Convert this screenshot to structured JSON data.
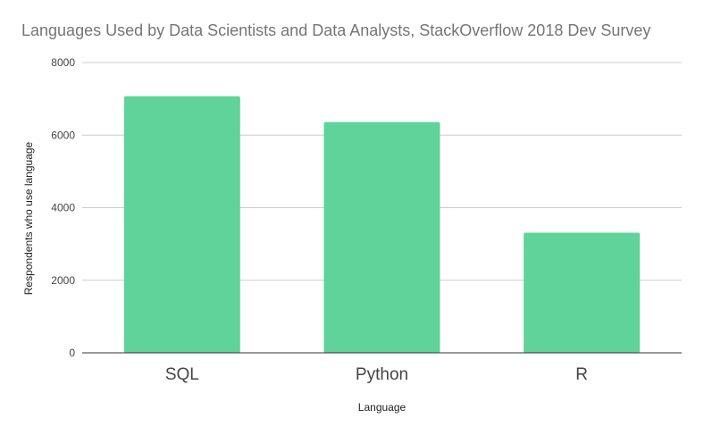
{
  "chart_data": {
    "type": "bar",
    "title": "Languages Used by Data Scientists and Data Analysts, StackOverflow 2018 Dev Survey",
    "xlabel": "Language",
    "ylabel": "Respondents who use language",
    "categories": [
      "SQL",
      "Python",
      "R"
    ],
    "values": [
      7070,
      6360,
      3310
    ],
    "ylim": [
      0,
      8000
    ],
    "yticks": [
      0,
      2000,
      4000,
      6000,
      8000
    ],
    "grid": true,
    "legend": "none",
    "bar_color": "#5fd39a",
    "gridline_color": "#cccccc",
    "axis_color": "#333333"
  }
}
